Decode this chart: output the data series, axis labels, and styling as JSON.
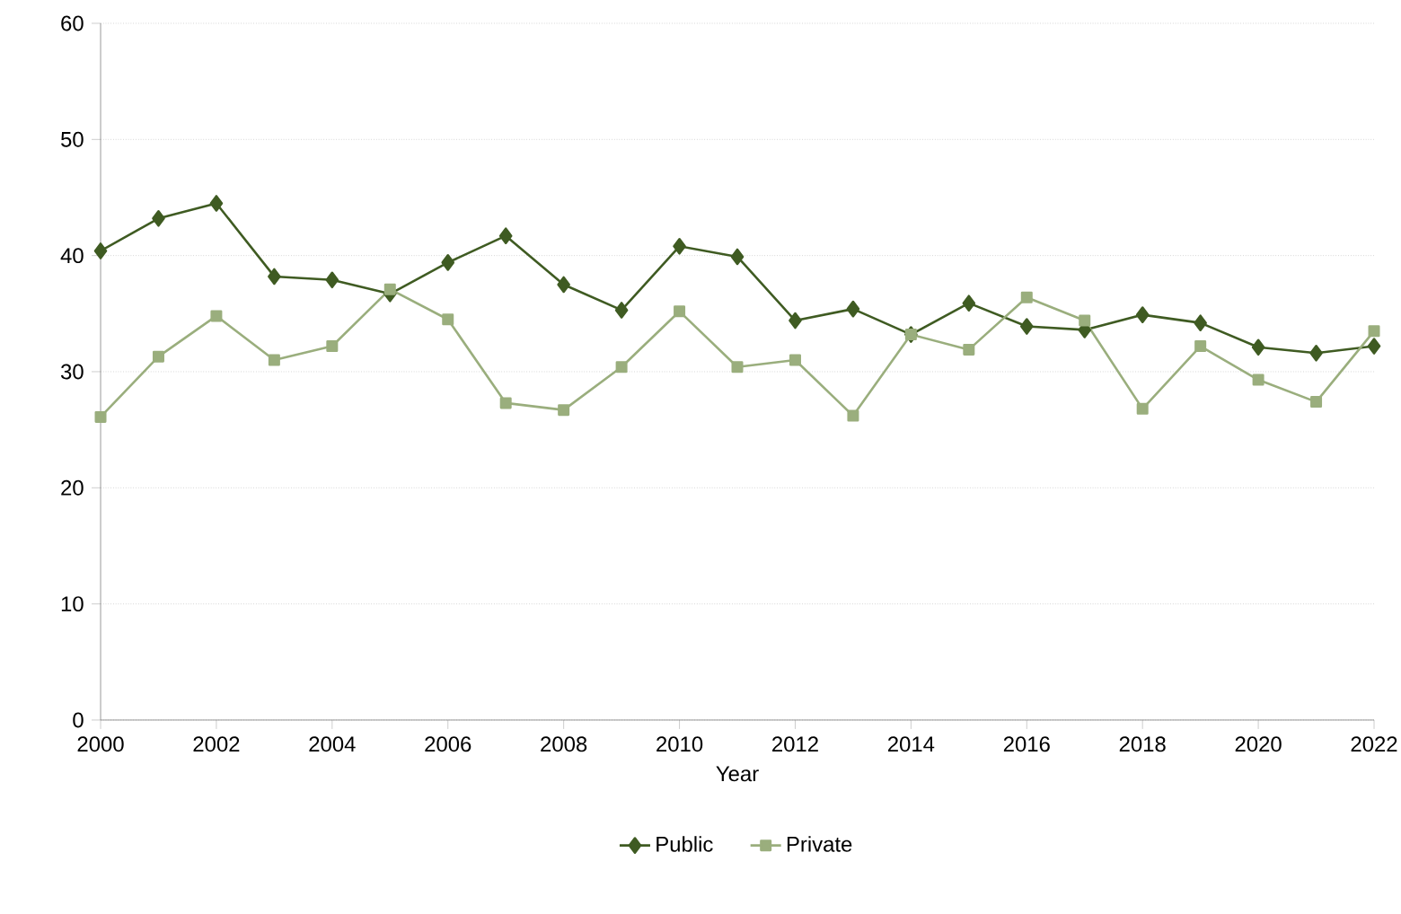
{
  "chart_data": {
    "type": "line",
    "xlabel": "Year",
    "x": [
      2000,
      2001,
      2002,
      2003,
      2004,
      2005,
      2006,
      2007,
      2008,
      2009,
      2010,
      2011,
      2012,
      2013,
      2014,
      2015,
      2016,
      2017,
      2018,
      2019,
      2020,
      2021,
      2022
    ],
    "series": [
      {
        "name": "Public",
        "color": "#3f5b22",
        "marker": "diamond",
        "values": [
          40.4,
          43.2,
          44.5,
          38.2,
          37.9,
          36.7,
          39.4,
          41.7,
          37.5,
          35.3,
          40.8,
          39.9,
          34.4,
          35.4,
          33.2,
          35.9,
          33.9,
          33.6,
          34.9,
          34.2,
          32.1,
          31.6,
          32.2
        ]
      },
      {
        "name": "Private",
        "color": "#9aae7d",
        "marker": "square",
        "values": [
          26.1,
          31.3,
          34.8,
          31.0,
          32.2,
          37.1,
          34.5,
          27.3,
          26.7,
          30.4,
          35.2,
          30.4,
          31.0,
          26.2,
          33.2,
          31.9,
          36.4,
          34.4,
          26.8,
          32.2,
          29.3,
          27.4,
          33.5
        ]
      }
    ],
    "xlim": [
      2000,
      2022
    ],
    "xticks": [
      2000,
      2002,
      2004,
      2006,
      2008,
      2010,
      2012,
      2014,
      2016,
      2018,
      2020,
      2022
    ],
    "ylim": [
      0,
      60
    ],
    "yticks": [
      0,
      10,
      20,
      30,
      40,
      50,
      60
    ],
    "grid": "y",
    "legend": "bottom",
    "line_style": "solid"
  }
}
